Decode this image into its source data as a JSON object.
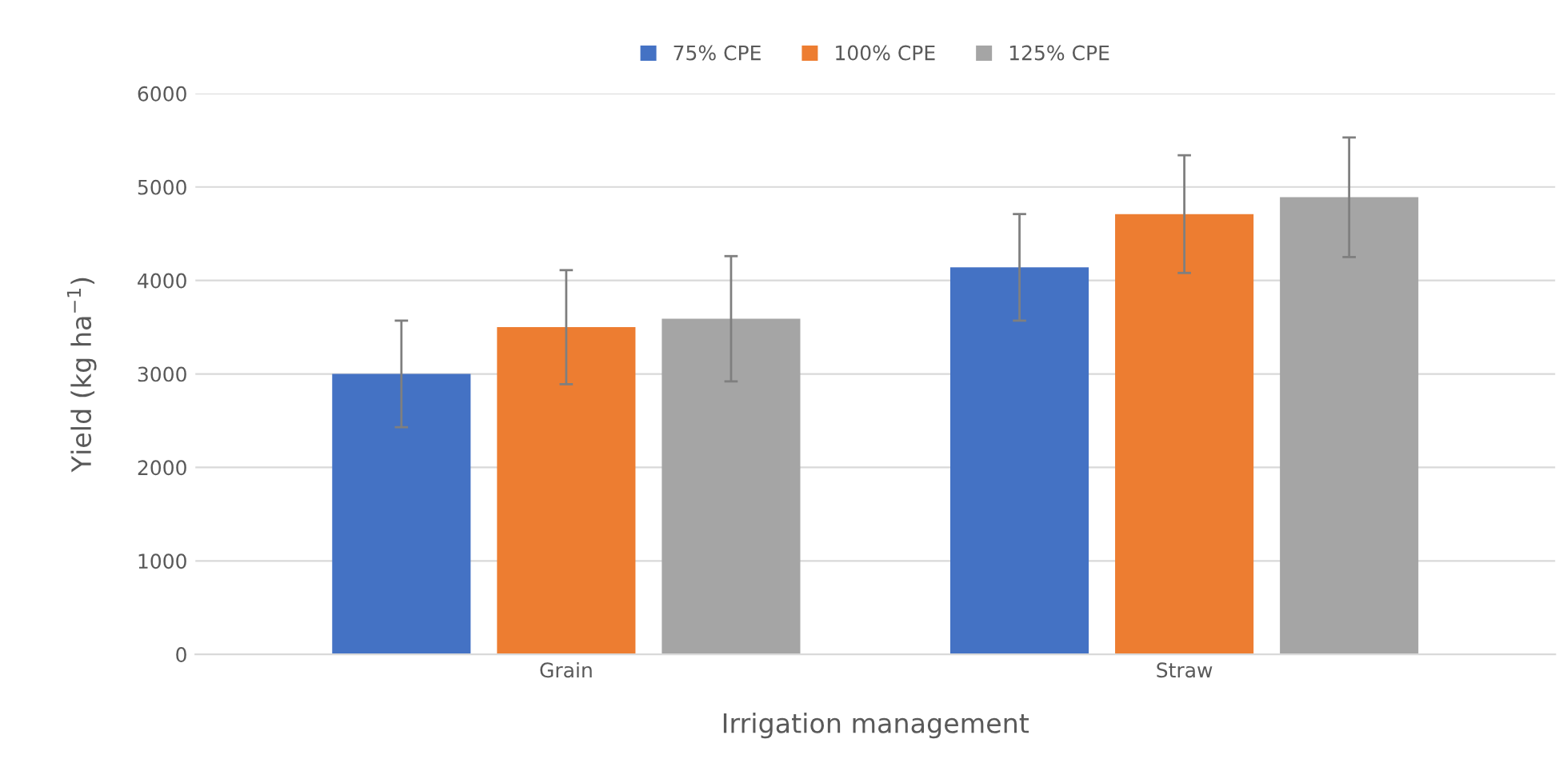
{
  "chart_data": {
    "type": "bar",
    "xlabel": "Irrigation management",
    "ylabel": "Yield (kg ha$^{−1}$)",
    "categories": [
      "Grain",
      "Straw"
    ],
    "series": [
      {
        "name": "75% CPE",
        "color": "#4472c4",
        "values": [
          3000,
          4140
        ],
        "errors": [
          570,
          570
        ]
      },
      {
        "name": "100% CPE",
        "color": "#ed7d31",
        "values": [
          3500,
          4710
        ],
        "errors": [
          610,
          630
        ]
      },
      {
        "name": "125% CPE",
        "color": "#a5a5a5",
        "values": [
          3590,
          4890
        ],
        "errors": [
          670,
          640
        ]
      }
    ],
    "ylim": [
      0,
      6000
    ],
    "yticks": [
      0,
      1000,
      2000,
      3000,
      4000,
      5000,
      6000
    ],
    "grid": "y",
    "legend": "top"
  }
}
